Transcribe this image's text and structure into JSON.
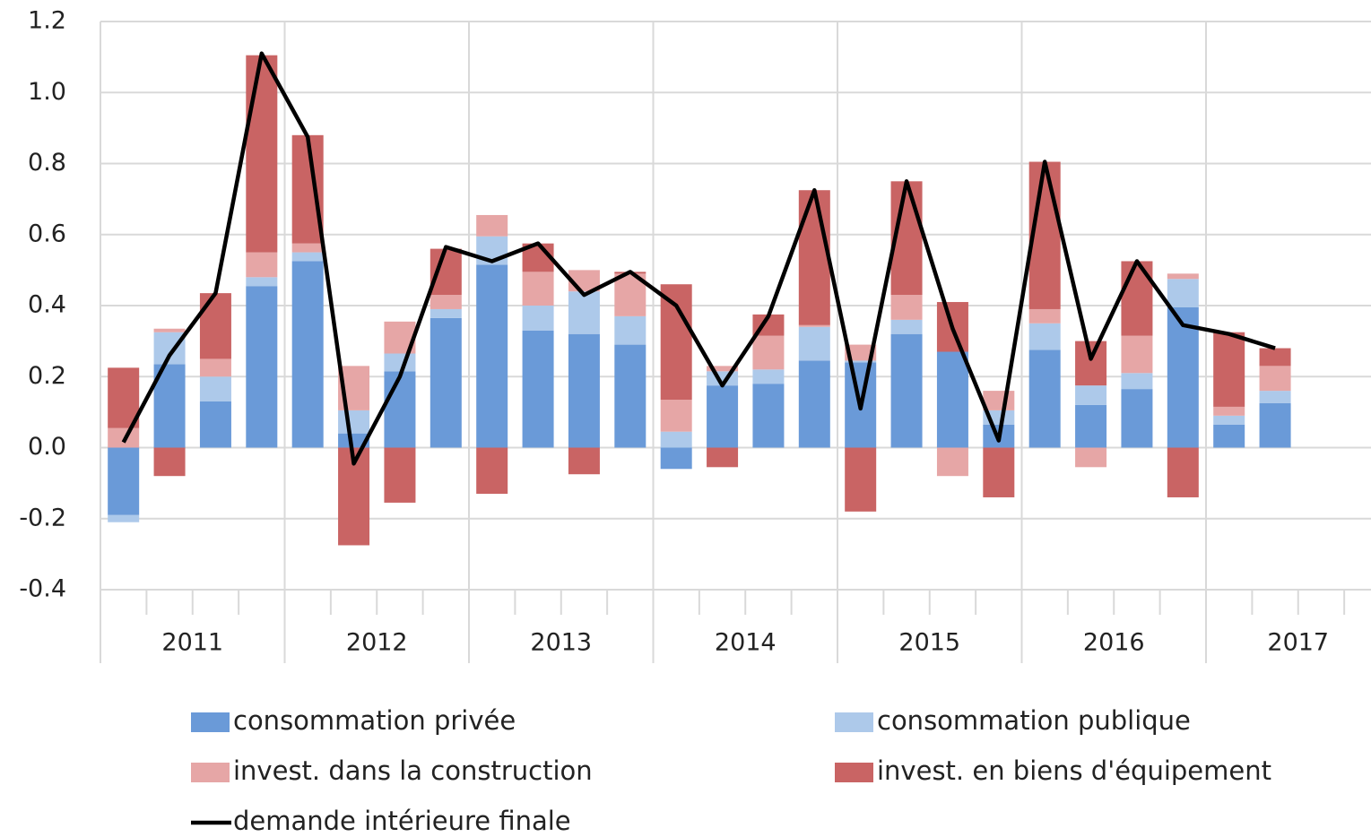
{
  "chart_data": {
    "type": "stacked_bar_line",
    "categories": [
      null,
      null,
      null,
      null,
      null,
      null,
      null,
      null,
      null,
      null,
      null,
      null,
      null,
      null,
      null,
      null,
      null,
      null,
      null,
      null,
      null,
      null,
      null,
      null,
      null,
      null,
      null,
      null
    ],
    "year_labels": [
      "2011",
      "2012",
      "2013",
      "2014",
      "2015",
      "2016",
      "2017"
    ],
    "series": [
      {
        "name": "consommation privée",
        "type": "bar",
        "color": "#6a9ad8",
        "values": [
          -0.19,
          0.235,
          0.13,
          0.455,
          0.525,
          0.04,
          0.215,
          0.365,
          0.515,
          0.33,
          0.32,
          0.29,
          -0.06,
          0.175,
          0.18,
          0.245,
          0.24,
          0.32,
          0.27,
          0.065,
          0.275,
          0.12,
          0.165,
          0.395,
          0.065,
          0.125,
          null,
          null
        ]
      },
      {
        "name": "consommation publique",
        "type": "bar",
        "color": "#adc9ea",
        "values": [
          -0.02,
          0.09,
          0.07,
          0.025,
          0.025,
          0.065,
          0.05,
          0.025,
          0.08,
          0.07,
          0.12,
          0.08,
          0.045,
          0.04,
          0.04,
          0.095,
          0.005,
          0.04,
          0.0,
          0.04,
          0.075,
          0.055,
          0.045,
          0.08,
          0.025,
          0.035,
          null,
          null
        ]
      },
      {
        "name": "invest. dans la construction",
        "type": "bar",
        "color": "#e6a6a6",
        "values": [
          0.055,
          0.01,
          0.05,
          0.07,
          0.025,
          0.125,
          0.09,
          0.04,
          0.06,
          0.095,
          0.06,
          0.12,
          0.09,
          0.015,
          0.095,
          0.005,
          0.045,
          0.07,
          -0.08,
          0.055,
          0.04,
          -0.055,
          0.105,
          0.015,
          0.025,
          0.07,
          null,
          null
        ]
      },
      {
        "name": "invest. en biens d'équipement",
        "type": "bar",
        "color": "#c96464",
        "values": [
          0.17,
          -0.08,
          0.185,
          0.555,
          0.305,
          -0.275,
          -0.155,
          0.13,
          -0.13,
          0.08,
          -0.075,
          0.005,
          0.325,
          -0.055,
          0.06,
          0.38,
          -0.18,
          0.32,
          0.14,
          -0.14,
          0.415,
          0.125,
          0.21,
          -0.14,
          0.21,
          0.05,
          null,
          null
        ]
      },
      {
        "name": "demande intérieure finale",
        "type": "line",
        "color": "#000000",
        "values": [
          0.015,
          0.26,
          0.435,
          1.11,
          0.875,
          -0.045,
          0.2,
          0.565,
          0.525,
          0.575,
          0.43,
          0.495,
          0.4,
          0.175,
          0.37,
          0.725,
          0.11,
          0.75,
          0.335,
          0.02,
          0.805,
          0.25,
          0.525,
          0.345,
          0.32,
          0.28,
          null,
          null
        ]
      }
    ],
    "ylim": [
      -0.4,
      1.2
    ],
    "yticks": [
      {
        "value": -0.4,
        "label": "-0.4"
      },
      {
        "value": -0.2,
        "label": "-0.2"
      },
      {
        "value": 0,
        "label": "0.0"
      },
      {
        "value": 0.2,
        "label": "0.2"
      },
      {
        "value": 0.4,
        "label": "0.4"
      },
      {
        "value": 0.6,
        "label": "0.6"
      },
      {
        "value": 0.8,
        "label": "0.8"
      },
      {
        "value": 1.0,
        "label": "1.0"
      },
      {
        "value": 1.2,
        "label": "1.2"
      }
    ],
    "grid": true
  }
}
